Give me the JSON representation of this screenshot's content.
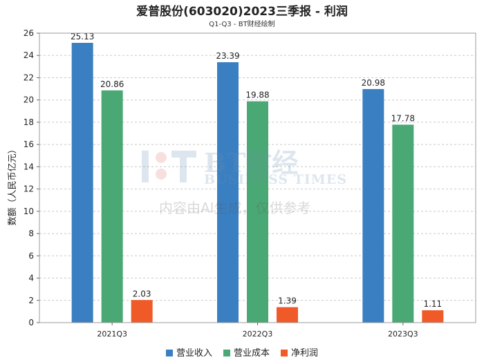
{
  "title": "爱普股份(603020)2023三季报 - 利润",
  "subtitle": "Q1-Q3 - BT财经绘制",
  "watermark": {
    "brand": "BT财经",
    "english": "BUSINESS TIMES",
    "notice": "内容由AI生成，仅供参考"
  },
  "chart_data": {
    "type": "bar",
    "categories": [
      "2021Q3",
      "2022Q3",
      "2023Q3"
    ],
    "ylabel": "数额（人民币亿元）",
    "xlabel": "",
    "ylim": [
      0,
      26
    ],
    "yticks": [
      0,
      2,
      4,
      6,
      8,
      10,
      12,
      14,
      16,
      18,
      20,
      22,
      24,
      26
    ],
    "grid": true,
    "legend_position": "bottom",
    "series": [
      {
        "name": "营业收入",
        "color": "#3a7fc1",
        "values": [
          25.13,
          23.39,
          20.98
        ],
        "labels": [
          "25.13",
          "23.39",
          "20.98"
        ]
      },
      {
        "name": "营业成本",
        "color": "#4aa874",
        "values": [
          20.86,
          19.88,
          17.78
        ],
        "labels": [
          "20.86",
          "19.88",
          "17.78"
        ]
      },
      {
        "name": "净利润",
        "color": "#f05a28",
        "values": [
          2.03,
          1.39,
          1.11
        ],
        "labels": [
          "2.03",
          "1.39",
          "1.11"
        ]
      }
    ]
  }
}
